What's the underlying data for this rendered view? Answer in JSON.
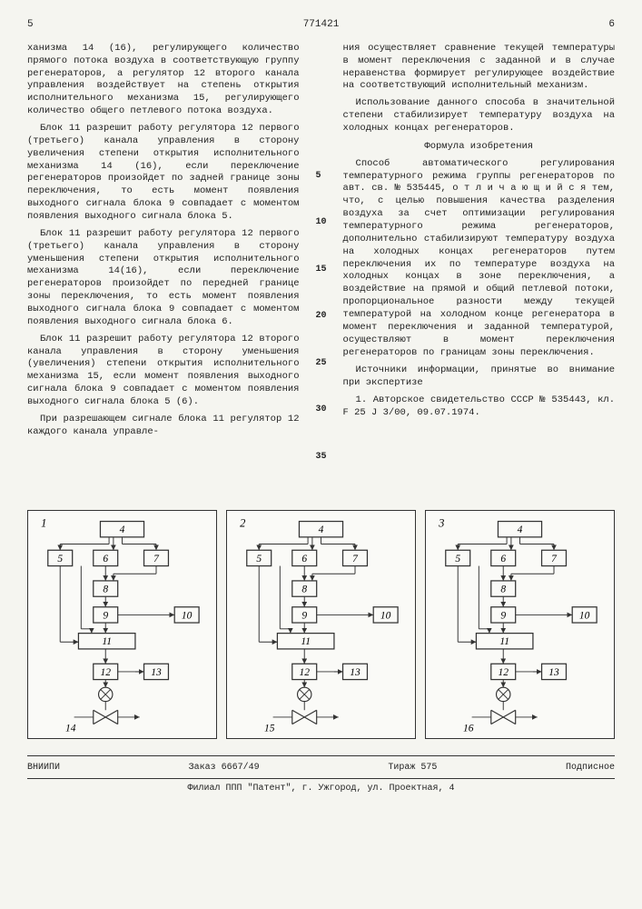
{
  "header": {
    "left_page": "5",
    "doc_number": "771421",
    "right_page": "6"
  },
  "left_column": {
    "p1": "ханизма 14 (16), регулирующего количество прямого потока воздуха в соответствующую группу регенераторов, а регулятор 12 второго канала управления воздействует на степень открытия исполнительного механизма 15, регулирующего количество общего петлевого потока воздуха.",
    "p2": "Блок 11 разрешит работу регулятора 12 первого (третьего) канала управления в сторону увеличения степени открытия исполнительного механизма 14 (16), если переключение регенераторов произойдет по задней границе зоны переключения, то есть момент появления выходного сигнала блока 9 совпадает с моментом появления выходного сигнала блока 5.",
    "p3": "Блок 11 разрешит работу регулятора 12 первого (третьего) канала управления в сторону уменьшения степени открытия исполнительного механизма 14(16), если переключение регенераторов произойдет по передней границе зоны переключения, то есть момент появления выходного сигнала блока 9 совпадает с моментом появления выходного сигнала блока 6.",
    "p4": "Блок 11 разрешит работу регулятора 12 второго канала управления в сторону уменьшения (увеличения) степени открытия исполнительного механизма 15, если момент появления выходного сигнала блока 9 совпадает с моментом появления выходного сигнала блока 5 (6).",
    "p5": "При разрешающем сигнале блока 11 регулятор 12 каждого канала управле-"
  },
  "right_column": {
    "p1": "ния осуществляет сравнение текущей температуры в момент переключения с заданной и в случае неравенства формирует регулирующее воздействие на соответствующий исполнительный механизм.",
    "p2": "Использование данного способа в значительной степени стабилизирует температуру воздуха на холодных концах регенераторов.",
    "formula_title": "Формула изобретения",
    "p3": "Способ автоматического регулирования температурного режима группы регенераторов по авт. св. № 535445, о т л и ч а ю щ и й с я  тем, что, с целью повышения качества разделения воздуха за счет оптимизации регулирования температурного режима регенераторов, дополнительно стабилизируют температуру воздуха на холодных концах регенераторов путем переключения их по температуре воздуха на холодных концах в зоне переключения, а воздействие на прямой и общий петлевой потоки, пропорциональное разности между текущей температурой на холодном конце регенератора в момент переключения и заданной температурой, осуществляют в момент переключения регенераторов по границам зоны переключения.",
    "sources_title": "Источники информации, принятые во внимание при экспертизе",
    "p4": "1. Авторское свидетельство СССР № 535443, кл. F 25 J 3/00, 09.07.1974."
  },
  "line_markers": [
    "5",
    "10",
    "15",
    "20",
    "25",
    "30",
    "35"
  ],
  "diagrams": [
    {
      "panel": "1",
      "bottom_label": "14"
    },
    {
      "panel": "2",
      "bottom_label": "15"
    },
    {
      "panel": "3",
      "bottom_label": "16"
    }
  ],
  "diagram_blocks": [
    "4",
    "5",
    "6",
    "7",
    "8",
    "9",
    "10",
    "11",
    "12",
    "13"
  ],
  "footer": {
    "org": "ВНИИПИ",
    "order": "Заказ 6667/49",
    "tiraj": "Тираж 575",
    "sign": "Подписное",
    "address": "Филиал ППП \"Патент\", г. Ужгород, ул. Проектная, 4"
  },
  "colors": {
    "bg": "#f5f5f0",
    "stroke": "#333333"
  }
}
